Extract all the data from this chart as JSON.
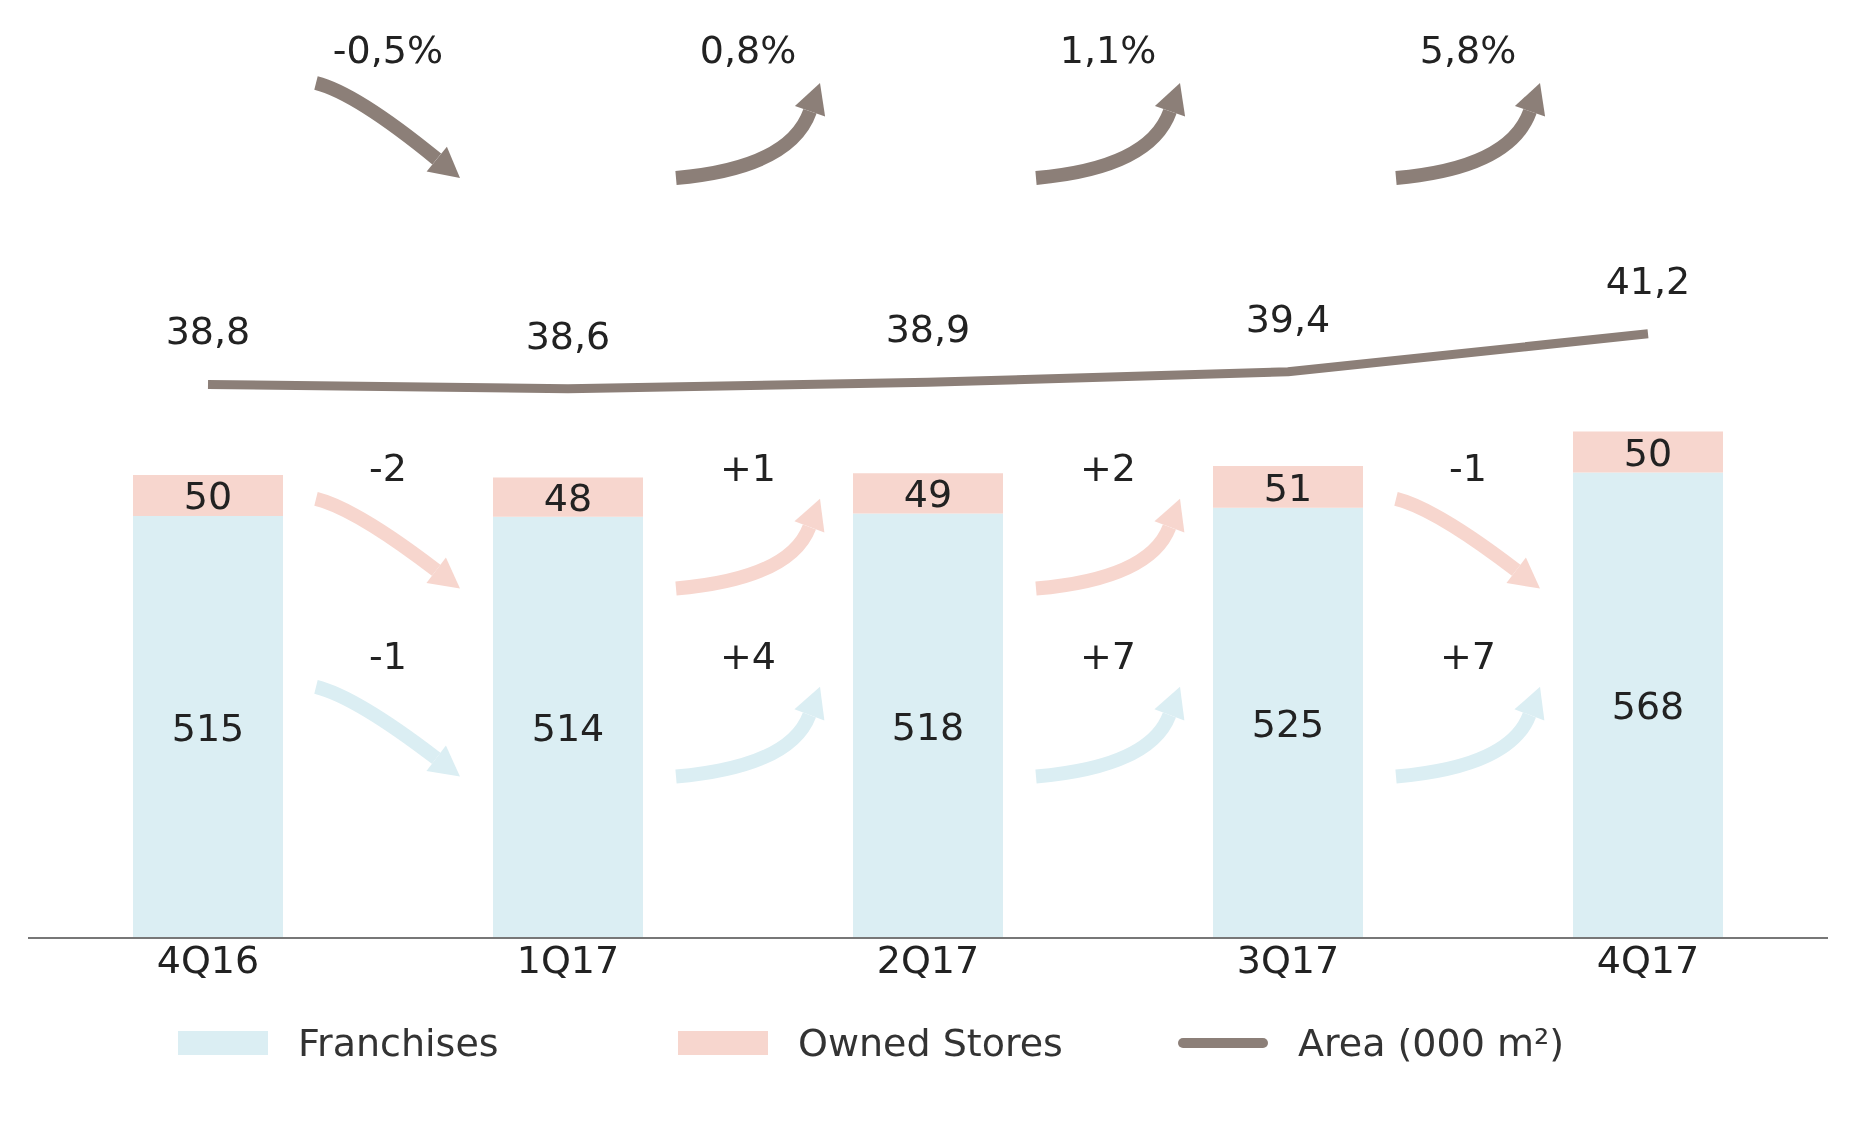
{
  "chart_data": [
    {
      "type": "bar",
      "stacked": true,
      "categories": [
        "4Q16",
        "1Q17",
        "2Q17",
        "3Q17",
        "4Q17"
      ],
      "series": [
        {
          "name": "Franchises",
          "color": "#dbeef3",
          "values": [
            515,
            514,
            518,
            525,
            568
          ],
          "value_labels": [
            "515",
            "514",
            "518",
            "525",
            "568"
          ]
        },
        {
          "name": "Owned Stores",
          "color": "#f7d6ce",
          "values": [
            50,
            48,
            49,
            51,
            50
          ],
          "value_labels": [
            "50",
            "48",
            "49",
            "51",
            "50"
          ]
        }
      ],
      "tick_labels": "x",
      "legend": "bottom",
      "annotations": [
        "-2",
        "+1",
        "+2",
        "-1",
        "-1",
        "+4",
        "+7",
        "+7"
      ]
    },
    {
      "type": "line",
      "categories": [
        null,
        null,
        null,
        null,
        null
      ],
      "series": [
        {
          "name": "Area (000 m²)",
          "color": "#8c7f78",
          "values": [
            38.8,
            38.6,
            38.9,
            39.4,
            41.2
          ],
          "value_labels": [
            "38,8",
            "38,6",
            "38,9",
            "39,4",
            "41,2"
          ]
        }
      ],
      "tick_labels": false,
      "legend": "bottom",
      "marker": "none",
      "annotations": [
        "-0,5%",
        "0,8%",
        "1,1%",
        "5,8%"
      ]
    }
  ]
}
